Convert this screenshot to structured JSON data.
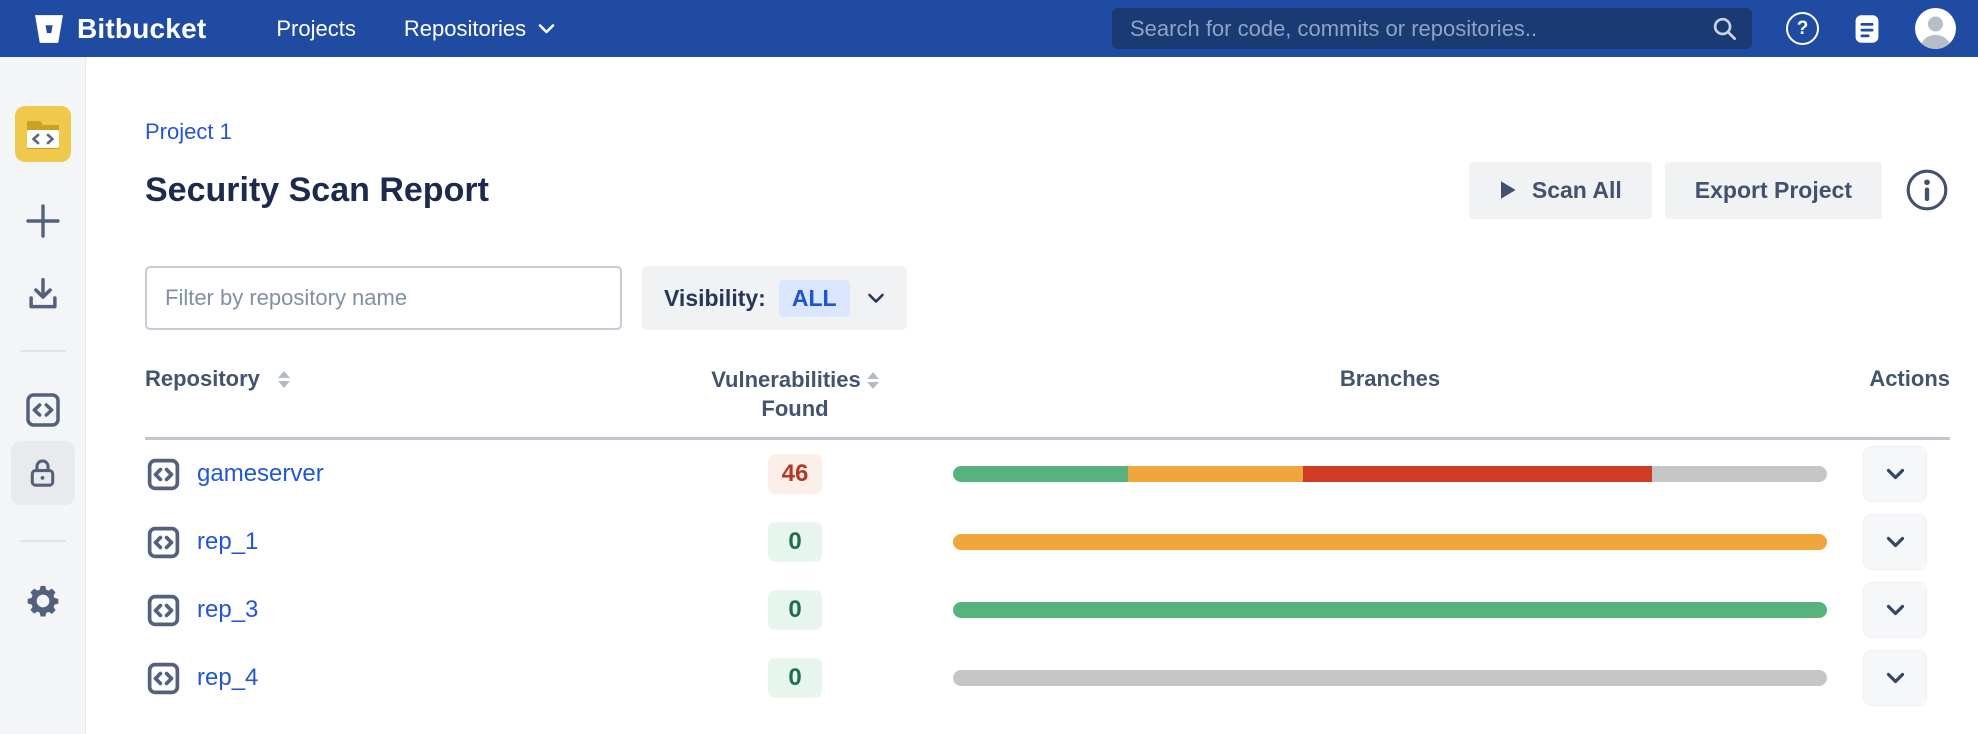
{
  "colors": {
    "navbar_bg": "#1F4BA3",
    "search_bg": "#1A3A73",
    "sidebar_bg": "#F4F5F7",
    "sidebar_selected_bg": "#E9EAEE",
    "icon_slate": "#54617C",
    "tile_yellow": "#EFC94C",
    "link_blue": "#2356D6",
    "heading_navy": "#1C2B4D",
    "button_bg": "#F1F2F4",
    "button_text": "#42526E",
    "header_text": "#44546F",
    "sort_arrow": "#B3BAC5",
    "divider": "#C1C7CF",
    "visibility_value_bg": "#D9E6FD",
    "visibility_value_text": "#1D53D0",
    "badge_high_bg": "#FCEEE9",
    "badge_high_text": "#B33922",
    "badge_zero_bg": "#E7F6ED",
    "badge_zero_text": "#216E4E",
    "bar_green": "#57B27E",
    "bar_orange": "#F0A63C",
    "bar_red": "#CD3C23",
    "bar_gray": "#C5C6C8"
  },
  "navbar": {
    "brand": "Bitbucket",
    "links": [
      {
        "label": "Projects"
      },
      {
        "label": "Repositories"
      }
    ],
    "search": {
      "placeholder": "Search for code, commits or repositories.."
    }
  },
  "page": {
    "breadcrumb": "Project 1",
    "title": "Security Scan Report",
    "actions": {
      "scan_all": "Scan All",
      "export_project": "Export Project"
    }
  },
  "filters": {
    "repo_filter_placeholder": "Filter by repository name",
    "visibility_label": "Visibility:",
    "visibility_value": "ALL"
  },
  "table": {
    "headers": {
      "repository": "Repository",
      "vulnerabilities_line1": "Vulnerabilities",
      "vulnerabilities_line2": "Found",
      "branches": "Branches",
      "actions": "Actions"
    },
    "rows": [
      {
        "name": "gameserver",
        "vulnerabilities": "46",
        "badge": "high",
        "branches": [
          {
            "color_key": "bar_green",
            "pct": 20
          },
          {
            "color_key": "bar_orange",
            "pct": 20
          },
          {
            "color_key": "bar_red",
            "pct": 40
          },
          {
            "color_key": "bar_gray",
            "pct": 20
          }
        ]
      },
      {
        "name": "rep_1",
        "vulnerabilities": "0",
        "badge": "zero",
        "branches": [
          {
            "color_key": "bar_orange",
            "pct": 100
          }
        ]
      },
      {
        "name": "rep_3",
        "vulnerabilities": "0",
        "badge": "zero",
        "branches": [
          {
            "color_key": "bar_green",
            "pct": 100
          }
        ]
      },
      {
        "name": "rep_4",
        "vulnerabilities": "0",
        "badge": "zero",
        "branches": [
          {
            "color_key": "bar_gray",
            "pct": 100
          }
        ]
      }
    ]
  }
}
